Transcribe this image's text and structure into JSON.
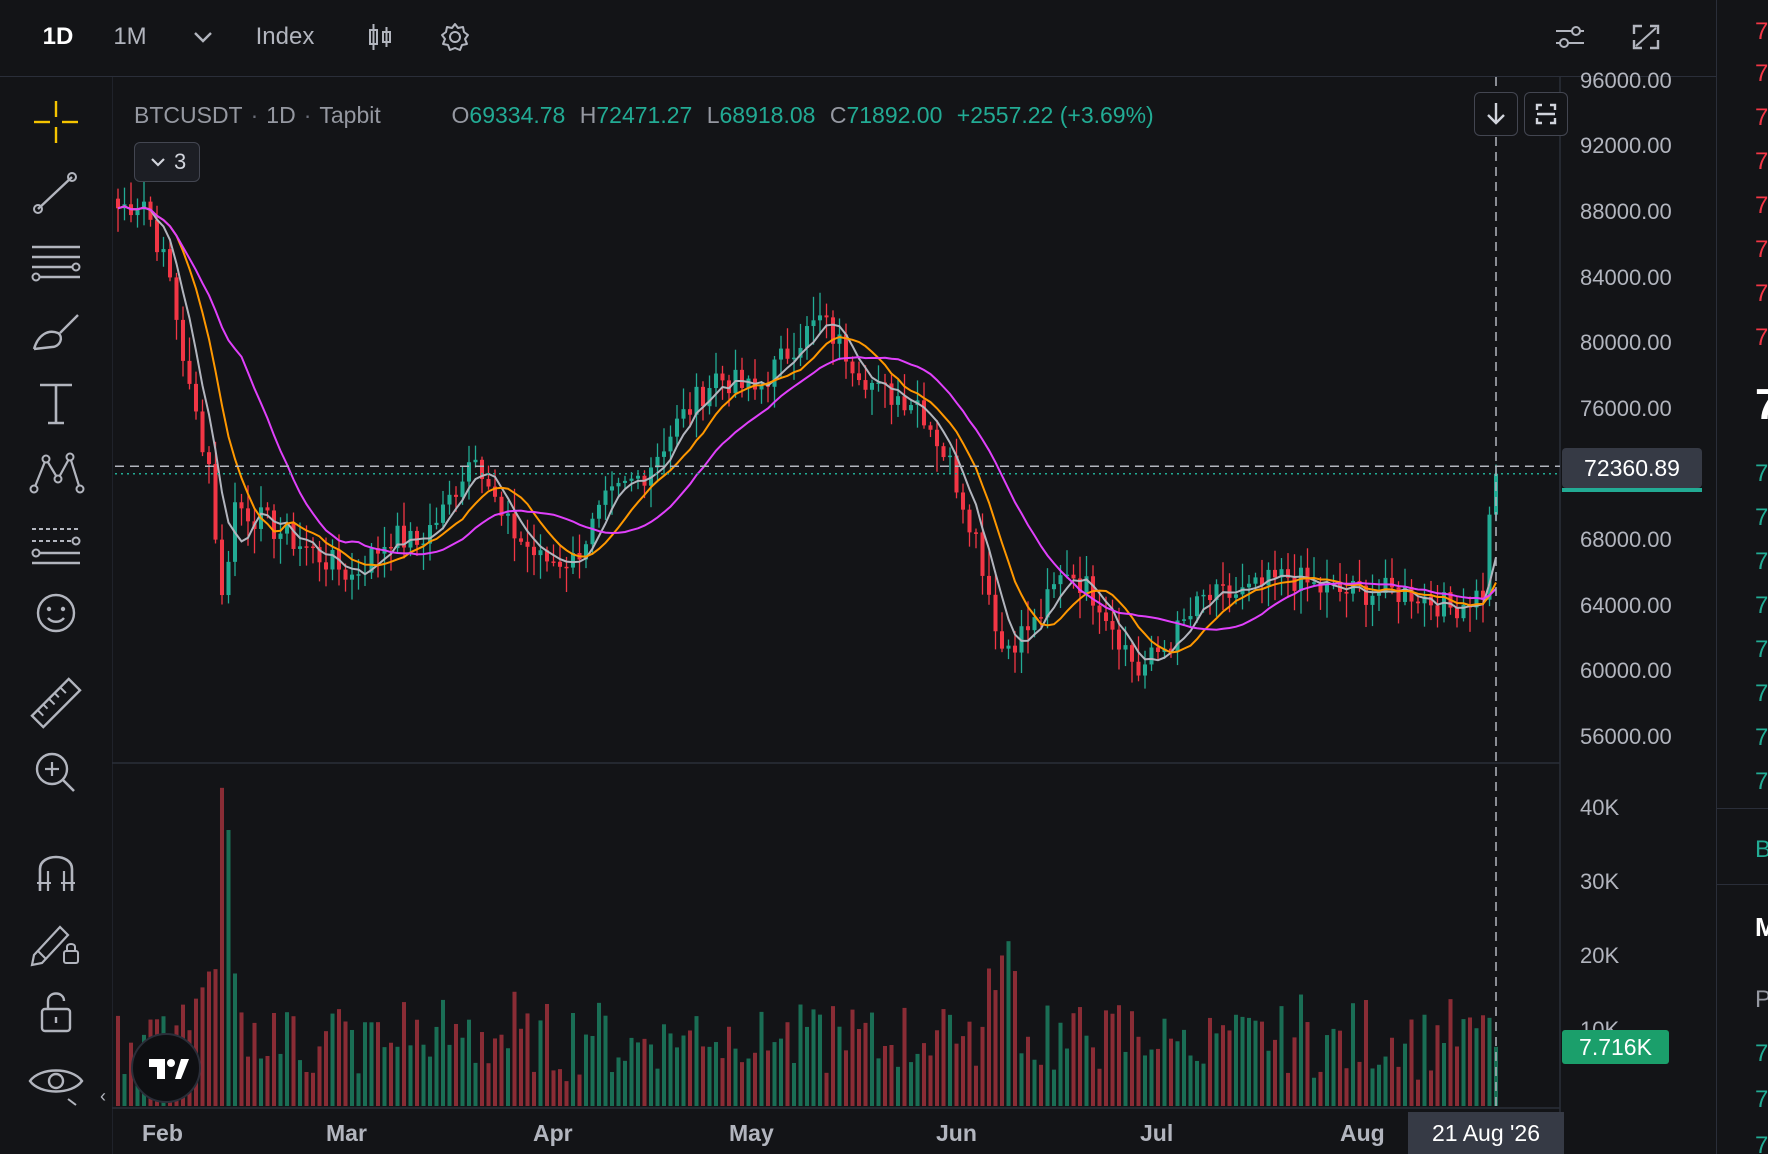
{
  "toolbar": {
    "interval_1d": "1D",
    "interval_1m": "1M",
    "index_label": "Index"
  },
  "legend": {
    "symbol": "BTCUSDT",
    "interval": "1D",
    "exchange": "Tapbit",
    "o_label": "O",
    "o_value": "69334.78",
    "h_label": "H",
    "h_value": "72471.27",
    "l_label": "L",
    "l_value": "68918.08",
    "c_label": "C",
    "c_value": "71892.00",
    "change": "+2557.22 (+3.69%)",
    "indicators_count": "3"
  },
  "price_scale": [
    "96000.00",
    "92000.00",
    "88000.00",
    "84000.00",
    "80000.00",
    "76000.00",
    "68000.00",
    "64000.00",
    "60000.00",
    "56000.00"
  ],
  "volume_scale": [
    "40K",
    "30K",
    "20K",
    "10K"
  ],
  "crosshair": {
    "price": "72360.89",
    "volume": "7.716K",
    "date": "21 Aug '26"
  },
  "time_axis": [
    "Feb",
    "Mar",
    "Apr",
    "May",
    "Jun",
    "Jul",
    "Aug"
  ],
  "right_panel": {
    "digits": [
      "7",
      "7",
      "7",
      "7",
      "7",
      "7",
      "7",
      "7"
    ],
    "big": "7",
    "green_digits": [
      "7",
      "7",
      "7",
      "7",
      "7",
      "7",
      "7",
      "7"
    ],
    "b": "B",
    "m": "M",
    "p": "P",
    "bottom_digits": [
      "7",
      "7",
      "7"
    ]
  },
  "colors": {
    "up": "#22ab94",
    "down": "#f23645",
    "ma_fast": "#b2b5be",
    "ma_mid": "#ff9800",
    "ma_slow": "#e040fb"
  },
  "chart_data": {
    "type": "candlestick",
    "title": "",
    "xlabel": "",
    "ylabel": "",
    "ylim": [
      54000,
      97000
    ],
    "volume_ylim": [
      0,
      42000
    ],
    "x_ticks": [
      "Feb",
      "Mar",
      "Apr",
      "May",
      "Jun",
      "Jul",
      "Aug"
    ],
    "y_ticks": [
      56000,
      60000,
      64000,
      68000,
      72000,
      76000,
      80000,
      84000,
      88000,
      92000,
      96000
    ],
    "anchors": [
      {
        "x": "Jan 21",
        "close": 88500
      },
      {
        "x": "Jan 25",
        "close": 89000
      },
      {
        "x": "Jan 29",
        "close": 84000
      },
      {
        "x": "Feb 01",
        "close": 77000
      },
      {
        "x": "Feb 04",
        "close": 72500
      },
      {
        "x": "Feb 06",
        "close": 64000
      },
      {
        "x": "Feb 08",
        "close": 70000
      },
      {
        "x": "Feb 14",
        "close": 68500
      },
      {
        "x": "Feb 20",
        "close": 67000
      },
      {
        "x": "Feb 26",
        "close": 65500
      },
      {
        "x": "Mar 04",
        "close": 68000
      },
      {
        "x": "Mar 08",
        "close": 67500
      },
      {
        "x": "Mar 12",
        "close": 69500
      },
      {
        "x": "Mar 17",
        "close": 73500
      },
      {
        "x": "Mar 21",
        "close": 69000
      },
      {
        "x": "Mar 27",
        "close": 66500
      },
      {
        "x": "Apr 01",
        "close": 66500
      },
      {
        "x": "Apr 06",
        "close": 70000
      },
      {
        "x": "Apr 12",
        "close": 72000
      },
      {
        "x": "Apr 17",
        "close": 75000
      },
      {
        "x": "Apr 23",
        "close": 78000
      },
      {
        "x": "Apr 29",
        "close": 77000
      },
      {
        "x": "May 05",
        "close": 80000
      },
      {
        "x": "May 09",
        "close": 81500
      },
      {
        "x": "May 13",
        "close": 79500
      },
      {
        "x": "May 18",
        "close": 77000
      },
      {
        "x": "May 24",
        "close": 76500
      },
      {
        "x": "May 29",
        "close": 72500
      },
      {
        "x": "Jun 02",
        "close": 68000
      },
      {
        "x": "Jun 06",
        "close": 61000
      },
      {
        "x": "Jun 11",
        "close": 62500
      },
      {
        "x": "Jun 16",
        "close": 66000
      },
      {
        "x": "Jun 21",
        "close": 64000
      },
      {
        "x": "Jun 27",
        "close": 59500
      },
      {
        "x": "Jul 02",
        "close": 61500
      },
      {
        "x": "Jul 07",
        "close": 64000
      },
      {
        "x": "Jul 14",
        "close": 64500
      },
      {
        "x": "Jul 20",
        "close": 65500
      },
      {
        "x": "Jul 26",
        "close": 64500
      },
      {
        "x": "Aug 02",
        "close": 64500
      },
      {
        "x": "Aug 08",
        "close": 64500
      },
      {
        "x": "Aug 14",
        "close": 63500
      },
      {
        "x": "Aug 19",
        "close": 64500
      },
      {
        "x": "Aug 20",
        "close": 69300
      },
      {
        "x": "Aug 21",
        "close": 71892
      }
    ],
    "series": [
      {
        "type": "moving-average"
      },
      {
        "type": "moving-average"
      },
      {
        "type": "moving-average"
      }
    ]
  }
}
